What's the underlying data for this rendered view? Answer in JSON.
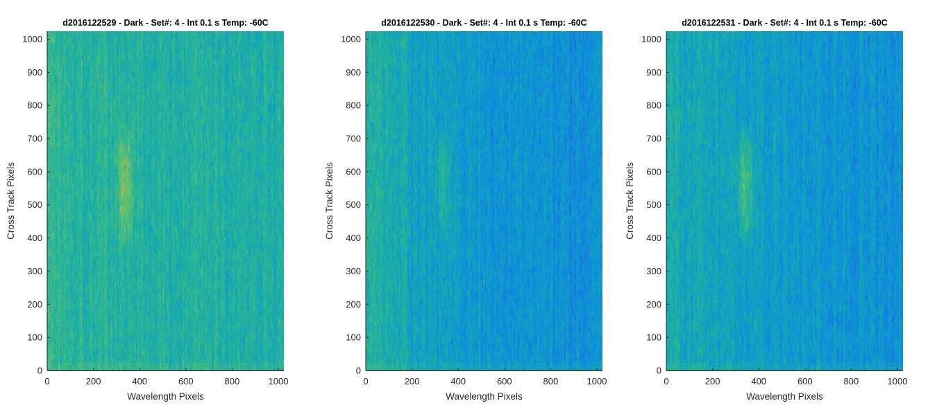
{
  "colors": {
    "background": "#ffffff",
    "axis": "#262626",
    "title": "#000000",
    "colormap": [
      "#3e26a8",
      "#1a72e3",
      "#0b96d9",
      "#19ada7",
      "#3dbd85",
      "#8fbf5a",
      "#d0ba3a",
      "#f9d12d"
    ]
  },
  "chart_data": [
    {
      "type": "heatmap",
      "title": "d2016122529 - Dark - Set#: 4 - Int 0.1 s Temp: -60C",
      "xlabel": "Wavelength Pixels",
      "ylabel": "Cross Track Pixels",
      "xlim": [
        0,
        1024
      ],
      "ylim": [
        0,
        1024
      ],
      "xticks": [
        0,
        200,
        400,
        600,
        800,
        1000
      ],
      "yticks": [
        0,
        100,
        200,
        300,
        400,
        500,
        600,
        700,
        800,
        900,
        1000
      ],
      "colormap": "parula",
      "grid": false,
      "base_level": 0.47,
      "left_edge_boost": 0.06,
      "right_falloff": 0.02,
      "blob": {
        "x_center": 335,
        "x_width": 30,
        "y_low": 360,
        "y_high": 760,
        "amplitude": 0.22
      }
    },
    {
      "type": "heatmap",
      "title": "d2016122530 - Dark - Set#: 4 - Int 0.1 s Temp: -60C",
      "xlabel": "Wavelength Pixels",
      "ylabel": "Cross Track Pixels",
      "xlim": [
        0,
        1024
      ],
      "ylim": [
        0,
        1024
      ],
      "xticks": [
        0,
        200,
        400,
        600,
        800,
        1000
      ],
      "yticks": [
        0,
        100,
        200,
        300,
        400,
        500,
        600,
        700,
        800,
        900,
        1000
      ],
      "colormap": "parula",
      "grid": false,
      "base_level": 0.33,
      "left_edge_boost": 0.18,
      "right_falloff": 0.06,
      "blob": {
        "x_center": 330,
        "x_width": 28,
        "y_low": 380,
        "y_high": 740,
        "amplitude": 0.14
      }
    },
    {
      "type": "heatmap",
      "title": "d2016122531 - Dark - Set#: 4 - Int 0.1 s Temp: -60C",
      "xlabel": "Wavelength Pixels",
      "ylabel": "Cross Track Pixels",
      "xlim": [
        0,
        1024
      ],
      "ylim": [
        0,
        1024
      ],
      "xticks": [
        0,
        200,
        400,
        600,
        800,
        1000
      ],
      "yticks": [
        0,
        100,
        200,
        300,
        400,
        500,
        600,
        700,
        800,
        900,
        1000
      ],
      "colormap": "parula",
      "grid": false,
      "base_level": 0.36,
      "left_edge_boost": 0.08,
      "right_falloff": 0.08,
      "blob": {
        "x_center": 340,
        "x_width": 32,
        "y_low": 360,
        "y_high": 760,
        "amplitude": 0.24
      }
    }
  ]
}
